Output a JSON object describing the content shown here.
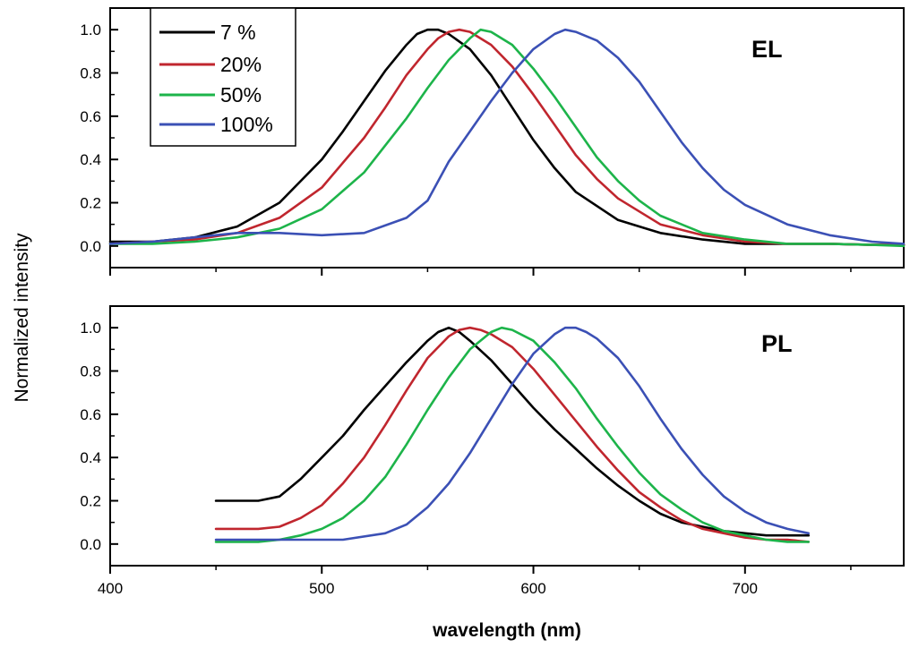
{
  "figure": {
    "shared_ylabel": "Normalized intensity",
    "shared_xlabel": "wavelength (nm)"
  },
  "legend": [
    {
      "label": "7 %",
      "color": "#000000"
    },
    {
      "label": "20%",
      "color": "#c0262e"
    },
    {
      "label": "50%",
      "color": "#1db44a"
    },
    {
      "label": "100%",
      "color": "#3b50b5"
    }
  ],
  "chart_data": [
    {
      "type": "line",
      "panel": "EL",
      "title": "",
      "annotation": "EL",
      "xlabel": "wavelength (nm)",
      "ylabel": "Normalized intensity",
      "xlim": [
        400,
        775
      ],
      "ylim": [
        -0.1,
        1.1
      ],
      "yticks": [
        0.0,
        0.2,
        0.4,
        0.6,
        0.8,
        1.0
      ],
      "ytick_labels": [
        "0.0",
        "0.2",
        "0.4",
        "0.6",
        "0.8",
        "1.0"
      ],
      "xticks": [
        400,
        500,
        600,
        700
      ],
      "grid": false,
      "legend_position": "top-left",
      "series": [
        {
          "name": "7 %",
          "color": "#000000",
          "x": [
            400,
            420,
            440,
            460,
            480,
            500,
            510,
            520,
            530,
            540,
            545,
            550,
            555,
            560,
            570,
            580,
            590,
            600,
            610,
            620,
            640,
            660,
            680,
            700,
            720,
            740,
            760,
            775
          ],
          "y": [
            0.02,
            0.02,
            0.04,
            0.09,
            0.2,
            0.4,
            0.53,
            0.67,
            0.81,
            0.93,
            0.98,
            1.0,
            1.0,
            0.98,
            0.91,
            0.79,
            0.64,
            0.49,
            0.36,
            0.25,
            0.12,
            0.06,
            0.03,
            0.01,
            0.01,
            0.01,
            0.005,
            0.005
          ]
        },
        {
          "name": "20%",
          "color": "#c0262e",
          "x": [
            400,
            420,
            440,
            460,
            480,
            500,
            520,
            530,
            540,
            550,
            555,
            560,
            565,
            570,
            580,
            590,
            600,
            610,
            620,
            630,
            640,
            660,
            680,
            700,
            720,
            740,
            760,
            775
          ],
          "y": [
            0.01,
            0.02,
            0.03,
            0.06,
            0.13,
            0.27,
            0.5,
            0.64,
            0.79,
            0.91,
            0.96,
            0.99,
            1.0,
            0.99,
            0.93,
            0.83,
            0.7,
            0.56,
            0.42,
            0.31,
            0.22,
            0.1,
            0.05,
            0.02,
            0.01,
            0.01,
            0.005,
            0.005
          ]
        },
        {
          "name": "50%",
          "color": "#1db44a",
          "x": [
            400,
            420,
            440,
            460,
            480,
            500,
            520,
            540,
            550,
            560,
            570,
            575,
            580,
            590,
            600,
            610,
            620,
            630,
            640,
            650,
            660,
            680,
            700,
            720,
            740,
            760,
            775
          ],
          "y": [
            0.01,
            0.01,
            0.02,
            0.04,
            0.08,
            0.17,
            0.34,
            0.59,
            0.73,
            0.86,
            0.96,
            1.0,
            0.99,
            0.93,
            0.82,
            0.69,
            0.55,
            0.41,
            0.3,
            0.21,
            0.14,
            0.06,
            0.03,
            0.01,
            0.01,
            0.005,
            0.0
          ]
        },
        {
          "name": "100%",
          "color": "#3b50b5",
          "x": [
            400,
            420,
            440,
            460,
            480,
            500,
            520,
            540,
            550,
            560,
            570,
            580,
            590,
            600,
            610,
            615,
            620,
            630,
            640,
            650,
            660,
            670,
            680,
            690,
            700,
            720,
            740,
            760,
            775
          ],
          "y": [
            0.01,
            0.02,
            0.04,
            0.06,
            0.06,
            0.05,
            0.06,
            0.13,
            0.21,
            0.39,
            0.53,
            0.67,
            0.8,
            0.91,
            0.98,
            1.0,
            0.99,
            0.95,
            0.87,
            0.76,
            0.62,
            0.48,
            0.36,
            0.26,
            0.19,
            0.1,
            0.05,
            0.02,
            0.01
          ]
        }
      ]
    },
    {
      "type": "line",
      "panel": "PL",
      "title": "",
      "annotation": "PL",
      "xlabel": "wavelength (nm)",
      "ylabel": "Normalized intensity",
      "xlim": [
        400,
        775
      ],
      "ylim": [
        -0.1,
        1.1
      ],
      "yticks": [
        0.0,
        0.2,
        0.4,
        0.6,
        0.8,
        1.0
      ],
      "ytick_labels": [
        "0.0",
        "0.2",
        "0.4",
        "0.6",
        "0.8",
        "1.0"
      ],
      "xticks": [
        400,
        500,
        600,
        700
      ],
      "xtick_labels": [
        "400",
        "500",
        "600",
        "700"
      ],
      "grid": false,
      "series": [
        {
          "name": "7 %",
          "color": "#000000",
          "x": [
            450,
            460,
            470,
            480,
            490,
            500,
            510,
            520,
            530,
            540,
            545,
            550,
            555,
            560,
            565,
            570,
            580,
            590,
            600,
            610,
            620,
            630,
            640,
            650,
            660,
            670,
            680,
            690,
            700,
            710,
            720,
            730
          ],
          "y": [
            0.2,
            0.2,
            0.2,
            0.22,
            0.3,
            0.4,
            0.5,
            0.62,
            0.73,
            0.84,
            0.89,
            0.94,
            0.98,
            1.0,
            0.98,
            0.94,
            0.85,
            0.74,
            0.63,
            0.53,
            0.44,
            0.35,
            0.27,
            0.2,
            0.14,
            0.1,
            0.08,
            0.06,
            0.05,
            0.04,
            0.04,
            0.04
          ]
        },
        {
          "name": "20%",
          "color": "#c0262e",
          "x": [
            450,
            460,
            470,
            480,
            490,
            500,
            510,
            520,
            530,
            540,
            550,
            560,
            565,
            570,
            575,
            580,
            590,
            600,
            610,
            620,
            630,
            640,
            650,
            660,
            670,
            680,
            690,
            700,
            710,
            720,
            730
          ],
          "y": [
            0.07,
            0.07,
            0.07,
            0.08,
            0.12,
            0.18,
            0.28,
            0.4,
            0.55,
            0.71,
            0.86,
            0.96,
            0.99,
            1.0,
            0.99,
            0.97,
            0.91,
            0.81,
            0.69,
            0.57,
            0.45,
            0.34,
            0.24,
            0.17,
            0.11,
            0.07,
            0.05,
            0.03,
            0.02,
            0.02,
            0.01
          ]
        },
        {
          "name": "50%",
          "color": "#1db44a",
          "x": [
            450,
            460,
            470,
            480,
            490,
            500,
            510,
            520,
            530,
            540,
            550,
            560,
            570,
            580,
            585,
            590,
            600,
            610,
            620,
            630,
            640,
            650,
            660,
            670,
            680,
            690,
            700,
            710,
            720,
            730
          ],
          "y": [
            0.01,
            0.01,
            0.01,
            0.02,
            0.04,
            0.07,
            0.12,
            0.2,
            0.31,
            0.46,
            0.62,
            0.77,
            0.9,
            0.98,
            1.0,
            0.99,
            0.94,
            0.84,
            0.72,
            0.58,
            0.45,
            0.33,
            0.23,
            0.16,
            0.1,
            0.06,
            0.04,
            0.02,
            0.01,
            0.01
          ]
        },
        {
          "name": "100%",
          "color": "#3b50b5",
          "x": [
            450,
            470,
            490,
            510,
            530,
            540,
            550,
            560,
            570,
            580,
            590,
            600,
            610,
            615,
            620,
            625,
            630,
            640,
            650,
            660,
            670,
            680,
            690,
            700,
            710,
            720,
            730
          ],
          "y": [
            0.02,
            0.02,
            0.02,
            0.02,
            0.05,
            0.09,
            0.17,
            0.28,
            0.42,
            0.58,
            0.74,
            0.88,
            0.97,
            1.0,
            1.0,
            0.98,
            0.95,
            0.86,
            0.73,
            0.58,
            0.44,
            0.32,
            0.22,
            0.15,
            0.1,
            0.07,
            0.05
          ]
        }
      ]
    }
  ]
}
